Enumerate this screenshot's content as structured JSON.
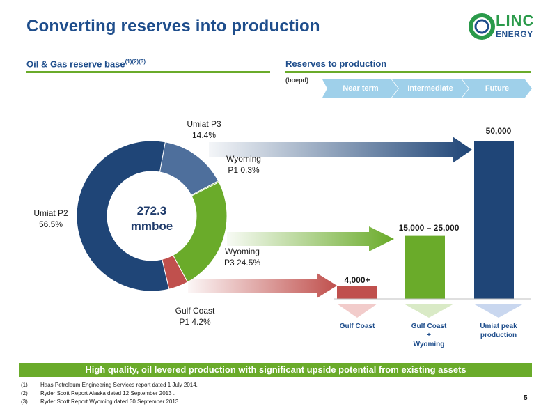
{
  "title": "Converting reserves into production",
  "logo": {
    "line1": "LINC",
    "line2": "ENERGY",
    "icon": "linc-ring-logo"
  },
  "left_section": {
    "heading": "Oil & Gas reserve base",
    "superscript": "(1)(2)(3)"
  },
  "right_section": {
    "heading": "Reserves to production",
    "unit": "(boepd)"
  },
  "phases": [
    "Near term",
    "Intermediate",
    "Future"
  ],
  "donut": {
    "center_value": "272.3",
    "center_unit": "mmboe",
    "labels": {
      "umiat_p3": [
        "Umiat P3",
        "14.4%"
      ],
      "wyoming_p1": [
        "Wyoming",
        "P1 0.3%"
      ],
      "umiat_p2": [
        "Umiat P2",
        "56.5%"
      ],
      "wyoming_p3": [
        "Wyoming",
        "P3 24.5%"
      ],
      "gulf_p1": [
        "Gulf Coast",
        "P1 4.2%"
      ]
    }
  },
  "bars": {
    "gulf": {
      "value_label": "4,000+",
      "category": [
        "Gulf Coast"
      ]
    },
    "gulf_wyoming": {
      "value_label": "15,000 – 25,000",
      "category": [
        "Gulf Coast",
        "+",
        "Wyoming"
      ]
    },
    "umiat": {
      "value_label": "50,000",
      "category": [
        "Umiat peak",
        "production"
      ]
    }
  },
  "banner": "High quality, oil levered production with significant upside potential from existing assets",
  "footnotes": [
    {
      "num": "(1)",
      "text": "Haas Petroleum Engineering Services report dated 1 July 2014."
    },
    {
      "num": "(2)",
      "text": "Ryder Scott Report Alaska dated 12 September 2013 ."
    },
    {
      "num": "(3)",
      "text": "Ryder Scott Report Wyoming dated 30 September 2013."
    }
  ],
  "page_number": "5",
  "chart_data": [
    {
      "type": "pie",
      "title": "Oil & Gas reserve base",
      "center_label": "272.3 mmboe",
      "categories": [
        "Umiat P2",
        "Umiat P3",
        "Wyoming P1",
        "Wyoming P3",
        "Gulf Coast P1"
      ],
      "values": [
        56.5,
        14.4,
        0.3,
        24.5,
        4.2
      ],
      "colors": [
        "#1f4577",
        "#4e6f9c",
        "#8fbf5a",
        "#6aab2a",
        "#c0504d"
      ]
    },
    {
      "type": "bar",
      "title": "Reserves to production",
      "ylabel": "(boepd)",
      "categories": [
        "Gulf Coast",
        "Gulf Coast + Wyoming",
        "Umiat peak production"
      ],
      "values": [
        4000,
        20000,
        50000
      ],
      "value_labels": [
        "4,000+",
        "15,000 – 25,000",
        "50,000"
      ],
      "colors": [
        "#c0504d",
        "#6aab2a",
        "#1f4577"
      ]
    }
  ],
  "colors": {
    "navy": "#1f4577",
    "green": "#6aab2a",
    "red": "#c0504d",
    "steel": "#4e6f9c",
    "title_blue": "#1f4e8c"
  }
}
